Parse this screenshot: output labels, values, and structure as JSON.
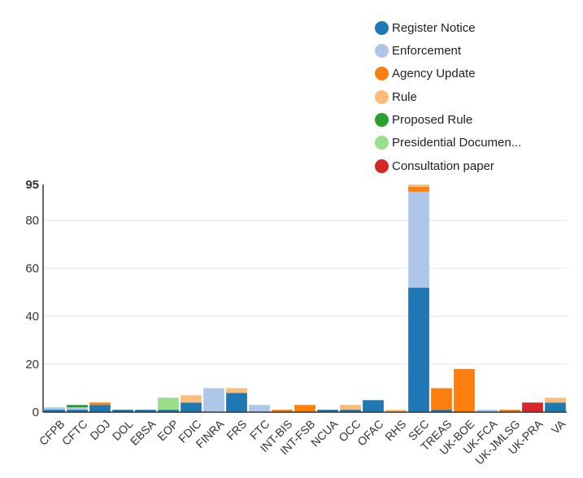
{
  "chart_data": {
    "type": "bar",
    "stacked": true,
    "title": "",
    "xlabel": "",
    "ylabel": "",
    "ylim": [
      0,
      95
    ],
    "yticks": [
      0,
      20,
      40,
      60,
      80,
      95
    ],
    "ytick_labels": [
      "0",
      "20",
      "40",
      "60",
      "80",
      "95"
    ],
    "grid": true,
    "legend_position": "top-right",
    "categories": [
      "CFPB",
      "CFTC",
      "DOJ",
      "DOL",
      "EBSA",
      "EOP",
      "FDIC",
      "FINRA",
      "FRS",
      "FTC",
      "INT-BIS",
      "INT-FSB",
      "NCUA",
      "OCC",
      "OFAC",
      "RHS",
      "SEC",
      "TREAS",
      "UK-BOE",
      "UK-FCA",
      "UK-JMLSG",
      "UK-PRA",
      "VA"
    ],
    "series": [
      {
        "name": "Register Notice",
        "color": "#1f77b4",
        "values": [
          1,
          1,
          3,
          1,
          1,
          1,
          4,
          0,
          8,
          0,
          0,
          0,
          1,
          1,
          5,
          0,
          52,
          1,
          0,
          0,
          0,
          0,
          4
        ]
      },
      {
        "name": "Enforcement",
        "color": "#aec7e8",
        "values": [
          1,
          1,
          0,
          0,
          0,
          0,
          0,
          10,
          0,
          3,
          0,
          0,
          0,
          0,
          0,
          0,
          40,
          0,
          0,
          1,
          0,
          0,
          0
        ]
      },
      {
        "name": "Agency Update",
        "color": "#ff7f0e",
        "values": [
          0,
          0,
          1,
          0,
          0,
          0,
          0,
          0,
          0,
          0,
          1,
          3,
          0,
          0,
          0,
          0,
          2,
          9,
          18,
          0,
          1,
          0,
          0
        ]
      },
      {
        "name": "Rule",
        "color": "#ffbb78",
        "values": [
          0,
          0,
          0,
          0,
          0,
          0,
          3,
          0,
          2,
          0,
          0,
          0,
          0,
          2,
          0,
          1,
          1,
          0,
          0,
          0,
          0,
          0,
          2
        ]
      },
      {
        "name": "Proposed Rule",
        "color": "#2ca02c",
        "values": [
          0,
          1,
          0,
          0,
          0,
          0,
          0,
          0,
          0,
          0,
          0,
          0,
          0,
          0,
          0,
          0,
          0,
          0,
          0,
          0,
          0,
          0,
          0
        ]
      },
      {
        "name": "Presidential Documen...",
        "color": "#98df8a",
        "values": [
          0,
          0,
          0,
          0,
          0,
          5,
          0,
          0,
          0,
          0,
          0,
          0,
          0,
          0,
          0,
          0,
          0,
          0,
          0,
          0,
          0,
          0,
          0
        ]
      },
      {
        "name": "Consultation paper",
        "color": "#d62728",
        "values": [
          0,
          0,
          0,
          0,
          0,
          0,
          0,
          0,
          0,
          0,
          0,
          0,
          0,
          0,
          0,
          0,
          0,
          0,
          0,
          0,
          0,
          4,
          0
        ]
      }
    ]
  }
}
